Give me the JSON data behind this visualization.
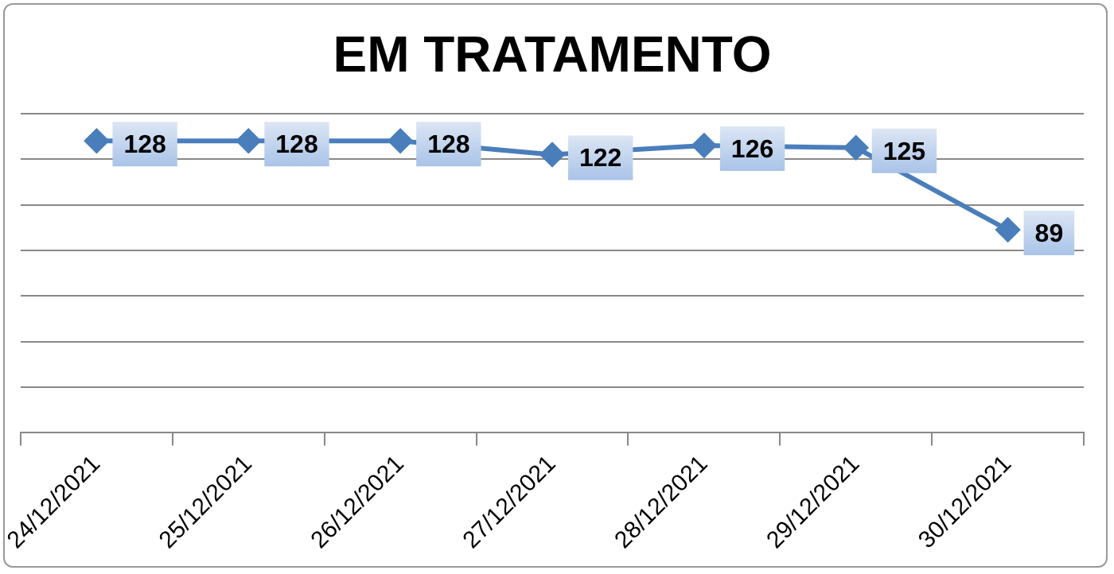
{
  "chart_data": {
    "type": "line",
    "title": "EM TRATAMENTO",
    "categories": [
      "24/12/2021",
      "25/12/2021",
      "26/12/2021",
      "27/12/2021",
      "28/12/2021",
      "29/12/2021",
      "30/12/2021"
    ],
    "series": [
      {
        "color": "#4a7ebb",
        "values": [
          128,
          128,
          128,
          122,
          126,
          125,
          89
        ]
      }
    ],
    "ylim": [
      0,
      140
    ],
    "yticks": [
      0,
      20,
      40,
      60,
      80,
      100,
      120,
      140
    ],
    "tick_labels": "x",
    "grid": "y",
    "legend": false,
    "marker": "diamond",
    "line_style": "solid",
    "data_labels": true
  }
}
